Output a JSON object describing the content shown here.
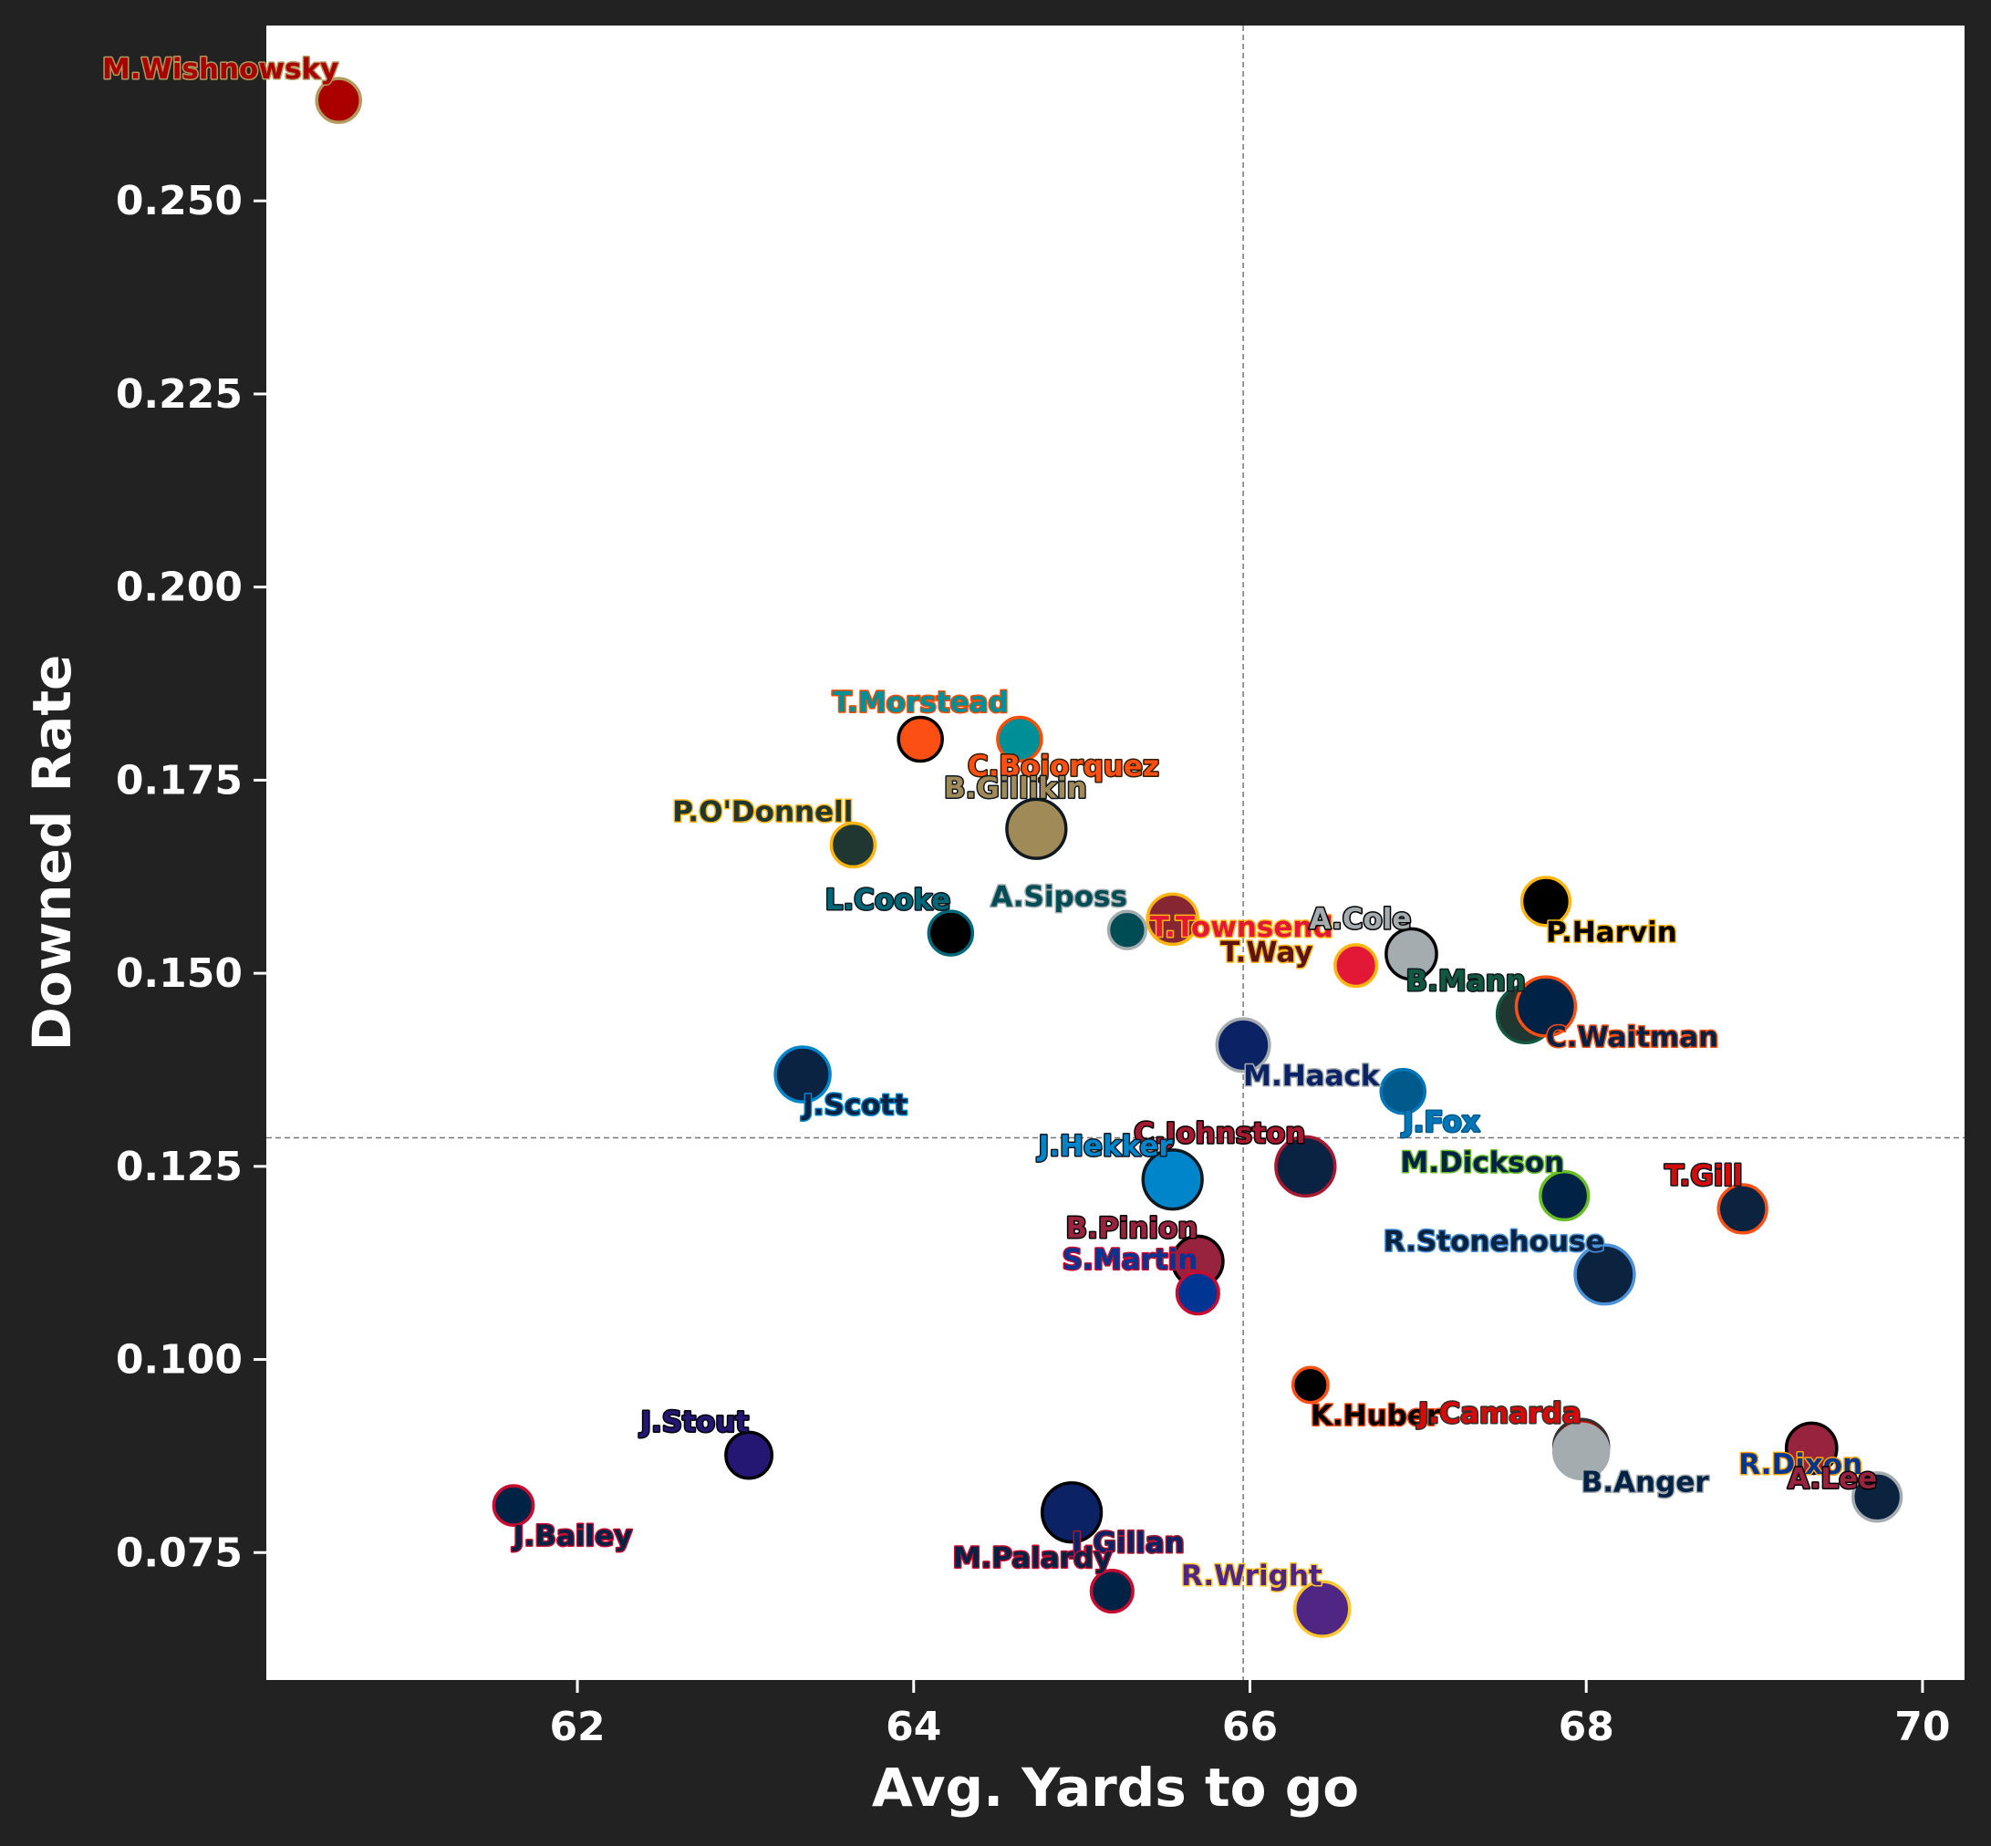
{
  "chart_data": {
    "type": "scatter",
    "title": "",
    "xlabel": "Avg. Yards to go",
    "ylabel": "Downed Rate",
    "xlim": [
      60.15,
      70.25
    ],
    "ylim": [
      0.0585,
      0.2727
    ],
    "xticks": [
      "62",
      "64",
      "66",
      "68",
      "70"
    ],
    "xtick_values": [
      62,
      64,
      66,
      68,
      70
    ],
    "yticks": [
      "0.075",
      "0.100",
      "0.125",
      "0.150",
      "0.175",
      "0.200",
      "0.225",
      "0.250"
    ],
    "ytick_values": [
      0.075,
      0.1,
      0.125,
      0.15,
      0.175,
      0.2,
      0.225,
      0.25
    ],
    "mean_x": 65.96,
    "mean_y": 0.1287,
    "grid": false,
    "points": [
      {
        "name": "M.Wishnowsky",
        "x": 60.58,
        "y": 0.263,
        "size": 1.0,
        "fill": "#AA0000",
        "edge": "#B3995D",
        "label_color": "#AA0000",
        "label_outline": "#B3995D",
        "anchor": "end",
        "dx": 0,
        "dy": -24
      },
      {
        "name": "T.Morstead",
        "x": 64.04,
        "y": 0.1803,
        "size": 1.0,
        "fill": "#FB4F14",
        "edge": "#000000",
        "label_color": "#008E97",
        "label_outline": "#FC4C02",
        "anchor": "middle",
        "dx": 0,
        "dy": -30
      },
      {
        "name": "C.Bojorquez",
        "x": 64.63,
        "y": 0.1803,
        "size": 1.0,
        "fill": "#008E97",
        "edge": "#FC4C02",
        "label_color": "#FB4F14",
        "label_outline": "#311D00",
        "anchor": "middle",
        "dx": 48,
        "dy": 40
      },
      {
        "name": "B.Gillikin",
        "x": 64.73,
        "y": 0.1687,
        "size": 1.35,
        "fill": "#A08A58",
        "edge": "#101820",
        "label_color": "#A08A58",
        "label_outline": "#101820",
        "anchor": "middle",
        "dx": -23,
        "dy": -34
      },
      {
        "name": "P.O'Donnell",
        "x": 63.64,
        "y": 0.1666,
        "size": 1.0,
        "fill": "#203731",
        "edge": "#FFB612",
        "label_color": "#203731",
        "label_outline": "#FFB612",
        "anchor": "end",
        "dx": 0,
        "dy": -26
      },
      {
        "name": "L.Cooke",
        "x": 64.22,
        "y": 0.1552,
        "size": 1.0,
        "fill": "#000000",
        "edge": "#006778",
        "label_color": "#006778",
        "label_outline": "#101820",
        "anchor": "end",
        "dx": 0,
        "dy": -26
      },
      {
        "name": "A.Siposs",
        "x": 65.27,
        "y": 0.1556,
        "size": 0.85,
        "fill": "#004C54",
        "edge": "#A5ACAF",
        "label_color": "#004C54",
        "label_outline": "#A5ACAF",
        "anchor": "end",
        "dx": 0,
        "dy": -26
      },
      {
        "name": "T.Townsend",
        "x": 65.54,
        "y": 0.157,
        "size": 1.15,
        "fill": "#862633",
        "edge": "#FFB612",
        "label_color": "#E31837",
        "label_outline": "#FFB612",
        "anchor": "start",
        "dx": -25,
        "dy": 19
      },
      {
        "name": "T.Way",
        "x": 66.63,
        "y": 0.151,
        "size": 0.95,
        "fill": "#E31837",
        "edge": "#FFB612",
        "label_color": "#5A1414",
        "label_outline": "#FFB612",
        "anchor": "end",
        "dx": -47,
        "dy": -4
      },
      {
        "name": "A.Cole",
        "x": 66.96,
        "y": 0.1525,
        "size": 1.15,
        "fill": "#A5ACAF",
        "edge": "#000000",
        "label_color": "#A5ACAF",
        "label_outline": "#000000",
        "anchor": "end",
        "dx": 0,
        "dy": -28
      },
      {
        "name": "P.Harvin",
        "x": 67.76,
        "y": 0.1593,
        "size": 1.1,
        "fill": "#000000",
        "edge": "#FFB612",
        "label_color": "#000000",
        "label_outline": "#FFB612",
        "anchor": "start",
        "dx": 0,
        "dy": 44
      },
      {
        "name": "B.Mann",
        "x": 67.64,
        "y": 0.1447,
        "size": 1.3,
        "fill": "#203731",
        "edge": "#125740",
        "label_color": "#125740",
        "label_outline": "#101820",
        "anchor": "end",
        "dx": 0,
        "dy": -26
      },
      {
        "name": "C.Waitman",
        "x": 67.76,
        "y": 0.1457,
        "size": 1.35,
        "fill": "#002244",
        "edge": "#FB4F14",
        "label_color": "#002244",
        "label_outline": "#FB4F14",
        "anchor": "start",
        "dx": 0,
        "dy": 44
      },
      {
        "name": "M.Haack",
        "x": 65.96,
        "y": 0.1407,
        "size": 1.2,
        "fill": "#0B2265",
        "edge": "#A5ACAF",
        "label_color": "#0B2265",
        "label_outline": "#A5ACAF",
        "anchor": "start",
        "dx": 0,
        "dy": 44
      },
      {
        "name": "J.Fox",
        "x": 66.91,
        "y": 0.1347,
        "size": 1.0,
        "fill": "#005A8B",
        "edge": "#0076B6",
        "label_color": "#0076B6",
        "label_outline": "#005A8B",
        "anchor": "start",
        "dx": 0,
        "dy": 44
      },
      {
        "name": "J.Scott",
        "x": 63.34,
        "y": 0.1369,
        "size": 1.25,
        "fill": "#0A2342",
        "edge": "#0085CA",
        "label_color": "#0A2342",
        "label_outline": "#0085CA",
        "anchor": "start",
        "dx": 0,
        "dy": 44
      },
      {
        "name": "C.Johnston",
        "x": 66.33,
        "y": 0.125,
        "size": 1.35,
        "fill": "#0A2342",
        "edge": "#A71930",
        "label_color": "#A71930",
        "label_outline": "#000000",
        "anchor": "end",
        "dx": 0,
        "dy": -26
      },
      {
        "name": "J.Hekker",
        "x": 65.54,
        "y": 0.1233,
        "size": 1.35,
        "fill": "#0085CA",
        "edge": "#101820",
        "label_color": "#0085CA",
        "label_outline": "#101820",
        "anchor": "end",
        "dx": 0,
        "dy": -26
      },
      {
        "name": "M.Dickson",
        "x": 67.87,
        "y": 0.1212,
        "size": 1.1,
        "fill": "#002244",
        "edge": "#69BE28",
        "label_color": "#002244",
        "label_outline": "#69BE28",
        "anchor": "end",
        "dx": 0,
        "dy": -26
      },
      {
        "name": "T.Gill",
        "x": 68.93,
        "y": 0.1195,
        "size": 1.1,
        "fill": "#0C2340",
        "edge": "#FB4F14",
        "label_color": "#D50A0A",
        "label_outline": "#101820",
        "anchor": "end",
        "dx": 0,
        "dy": -26
      },
      {
        "name": "R.Stonehouse",
        "x": 68.11,
        "y": 0.111,
        "size": 1.35,
        "fill": "#0C2340",
        "edge": "#4B92DB",
        "label_color": "#0C2340",
        "label_outline": "#4B92DB",
        "anchor": "end",
        "dx": 0,
        "dy": -26
      },
      {
        "name": "B.Pinion",
        "x": 65.69,
        "y": 0.1127,
        "size": 1.15,
        "fill": "#97233F",
        "edge": "#000000",
        "label_color": "#97233F",
        "label_outline": "#000000",
        "anchor": "end",
        "dx": 0,
        "dy": -26
      },
      {
        "name": "S.Martin",
        "x": 65.69,
        "y": 0.1086,
        "size": 0.95,
        "fill": "#003594",
        "edge": "#C60C30",
        "label_color": "#003594",
        "label_outline": "#C60C30",
        "anchor": "end",
        "dx": 0,
        "dy": -26
      },
      {
        "name": "K.Huber",
        "x": 66.36,
        "y": 0.0967,
        "size": 0.8,
        "fill": "#000000",
        "edge": "#FB4F14",
        "label_color": "#000000",
        "label_outline": "#FB4F14",
        "anchor": "start",
        "dx": 0,
        "dy": 44
      },
      {
        "name": "J.Camarda",
        "x": 67.97,
        "y": 0.0887,
        "size": 1.25,
        "fill": "#D50A0A",
        "edge": "#34302B",
        "label_color": "#D50A0A",
        "label_outline": "#34302B",
        "anchor": "end",
        "dx": 0,
        "dy": -26
      },
      {
        "name": "B.Anger",
        "x": 67.97,
        "y": 0.0881,
        "size": 1.25,
        "fill": "#A5ACAF",
        "edge": "#A5ACAF",
        "label_color": "#002244",
        "label_outline": "#A5ACAF",
        "anchor": "start",
        "dx": 0,
        "dy": 44
      },
      {
        "name": "R.Dixon",
        "x": 69.34,
        "y": 0.0885,
        "size": 1.15,
        "fill": "#97233F",
        "edge": "#000000",
        "label_color": "#003594",
        "label_outline": "#FFA300",
        "anchor": "start",
        "dx": -80,
        "dy": 28
      },
      {
        "name": "A.Lee",
        "x": 69.73,
        "y": 0.0822,
        "size": 1.1,
        "fill": "#0C2340",
        "edge": "#A5ACAF",
        "label_color": "#97233F",
        "label_outline": "#000000",
        "anchor": "end",
        "dx": 0,
        "dy": -10
      },
      {
        "name": "J.Stout",
        "x": 63.02,
        "y": 0.0876,
        "size": 1.05,
        "fill": "#241773",
        "edge": "#000000",
        "label_color": "#241773",
        "label_outline": "#000000",
        "anchor": "end",
        "dx": 0,
        "dy": -26
      },
      {
        "name": "J.Bailey",
        "x": 61.62,
        "y": 0.0811,
        "size": 0.9,
        "fill": "#002244",
        "edge": "#C60C30",
        "label_color": "#002244",
        "label_outline": "#C60C30",
        "anchor": "start",
        "dx": 0,
        "dy": 44
      },
      {
        "name": "J.Gillan",
        "x": 64.94,
        "y": 0.0802,
        "size": 1.35,
        "fill": "#0B2265",
        "edge": "#000000",
        "label_color": "#0B2265",
        "label_outline": "#A71930",
        "anchor": "start",
        "dx": 0,
        "dy": 44
      },
      {
        "name": "M.Palardy",
        "x": 65.18,
        "y": 0.07,
        "size": 0.95,
        "fill": "#002244",
        "edge": "#C60C30",
        "label_color": "#002244",
        "label_outline": "#C60C30",
        "anchor": "end",
        "dx": 0,
        "dy": -26
      },
      {
        "name": "R.Wright",
        "x": 66.43,
        "y": 0.0677,
        "size": 1.25,
        "fill": "#4F2683",
        "edge": "#FFC62F",
        "label_color": "#4F2683",
        "label_outline": "#FFC62F",
        "anchor": "end",
        "dx": 0,
        "dy": -26
      }
    ]
  }
}
